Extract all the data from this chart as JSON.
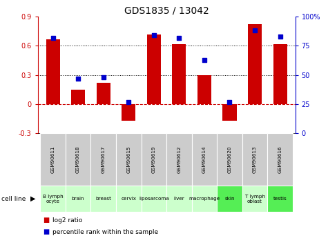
{
  "title": "GDS1835 / 13042",
  "gsm_labels": [
    "GSM90611",
    "GSM90618",
    "GSM90617",
    "GSM90615",
    "GSM90619",
    "GSM90612",
    "GSM90614",
    "GSM90620",
    "GSM90613",
    "GSM90616"
  ],
  "cell_labels": [
    "B lymph\nocyte",
    "brain",
    "breast",
    "cervix",
    "liposarcoma\n",
    "liver",
    "macrophage\n",
    "skin",
    "T lymph\noblast",
    "testis"
  ],
  "cell_bg_colors": [
    "#ccffcc",
    "#ccffcc",
    "#ccffcc",
    "#ccffcc",
    "#ccffcc",
    "#ccffcc",
    "#ccffcc",
    "#55ee55",
    "#ccffcc",
    "#55ee55"
  ],
  "log2_ratio": [
    0.67,
    0.15,
    0.22,
    -0.17,
    0.72,
    0.62,
    0.3,
    -0.17,
    0.82,
    0.62
  ],
  "percentile_rank": [
    82,
    47,
    48,
    27,
    84,
    82,
    63,
    27,
    88,
    83
  ],
  "ylim_left": [
    -0.3,
    0.9
  ],
  "ylim_right": [
    0,
    100
  ],
  "yticks_left": [
    -0.3,
    0.0,
    0.3,
    0.6,
    0.9
  ],
  "yticks_right": [
    0,
    25,
    50,
    75,
    100
  ],
  "ytick_right_labels": [
    "0",
    "25",
    "50",
    "75",
    "100%"
  ],
  "bar_color": "#cc0000",
  "dot_color": "#0000cc",
  "hline_y": 0.0,
  "dotted_lines": [
    0.3,
    0.6
  ],
  "bar_width": 0.55,
  "gsm_bg": "#cccccc"
}
